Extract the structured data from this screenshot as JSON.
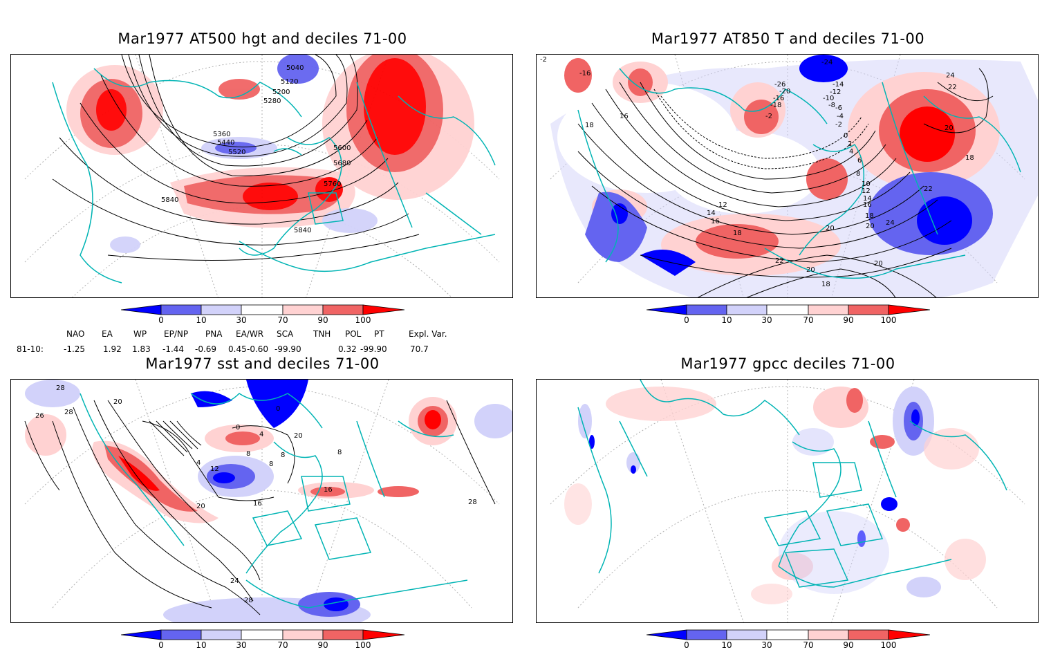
{
  "panels": {
    "p1": {
      "title": "Mar1977 AT500 hgt and deciles 71-00",
      "labels": [
        "5040",
        "5120",
        "5200",
        "5280",
        "5360",
        "5440",
        "5520",
        "5600",
        "5680",
        "5760",
        "5840",
        "5840"
      ]
    },
    "p2": {
      "title": "Mar1977 AT850 T and deciles 71-00",
      "labels": [
        "-24",
        "-14",
        "-12",
        "-10",
        "-8",
        "-6",
        "-4",
        "-2",
        "0",
        "2",
        "4",
        "6",
        "8",
        "10",
        "12",
        "14",
        "16",
        "18",
        "20",
        "22",
        "24",
        "-26",
        "-20",
        "-16",
        "-18",
        "-2",
        "16",
        "18",
        "12",
        "14",
        "16",
        "18",
        "20",
        "22",
        "20",
        "20",
        "18",
        "24",
        "22",
        "20",
        "18",
        "-16",
        "-2"
      ]
    },
    "p3": {
      "title": "Mar1977 sst and deciles 71-00",
      "labels": [
        "28",
        "26",
        "28",
        "20",
        "0",
        "0",
        "4",
        "4",
        "8",
        "8",
        "12",
        "16",
        "20",
        "24",
        "28",
        "28",
        "16",
        "20",
        "8",
        "8"
      ]
    },
    "p4": {
      "title": "Mar1977 gpcc deciles 71-00"
    }
  },
  "colorbar": {
    "ticks": [
      "0",
      "10",
      "30",
      "70",
      "90",
      "100"
    ],
    "colors": [
      "#0000ff",
      "#6464f0",
      "#d2d2fa",
      "#ffffff",
      "#ffd2d2",
      "#f06464",
      "#ff0000"
    ]
  },
  "indices": {
    "headers": [
      "NAO",
      "EA",
      "WP",
      "EP/NP",
      "PNA",
      "EA/WR",
      "SCA",
      "TNH",
      "POL",
      "PT",
      "Expl. Var."
    ],
    "row_label": "81-10:",
    "values": [
      "-1.25",
      "1.92",
      "1.83",
      "-1.44",
      "-0.69",
      "0.45",
      "-0.60",
      "-99.90",
      "0.32",
      "-99.90",
      "70.7"
    ]
  }
}
